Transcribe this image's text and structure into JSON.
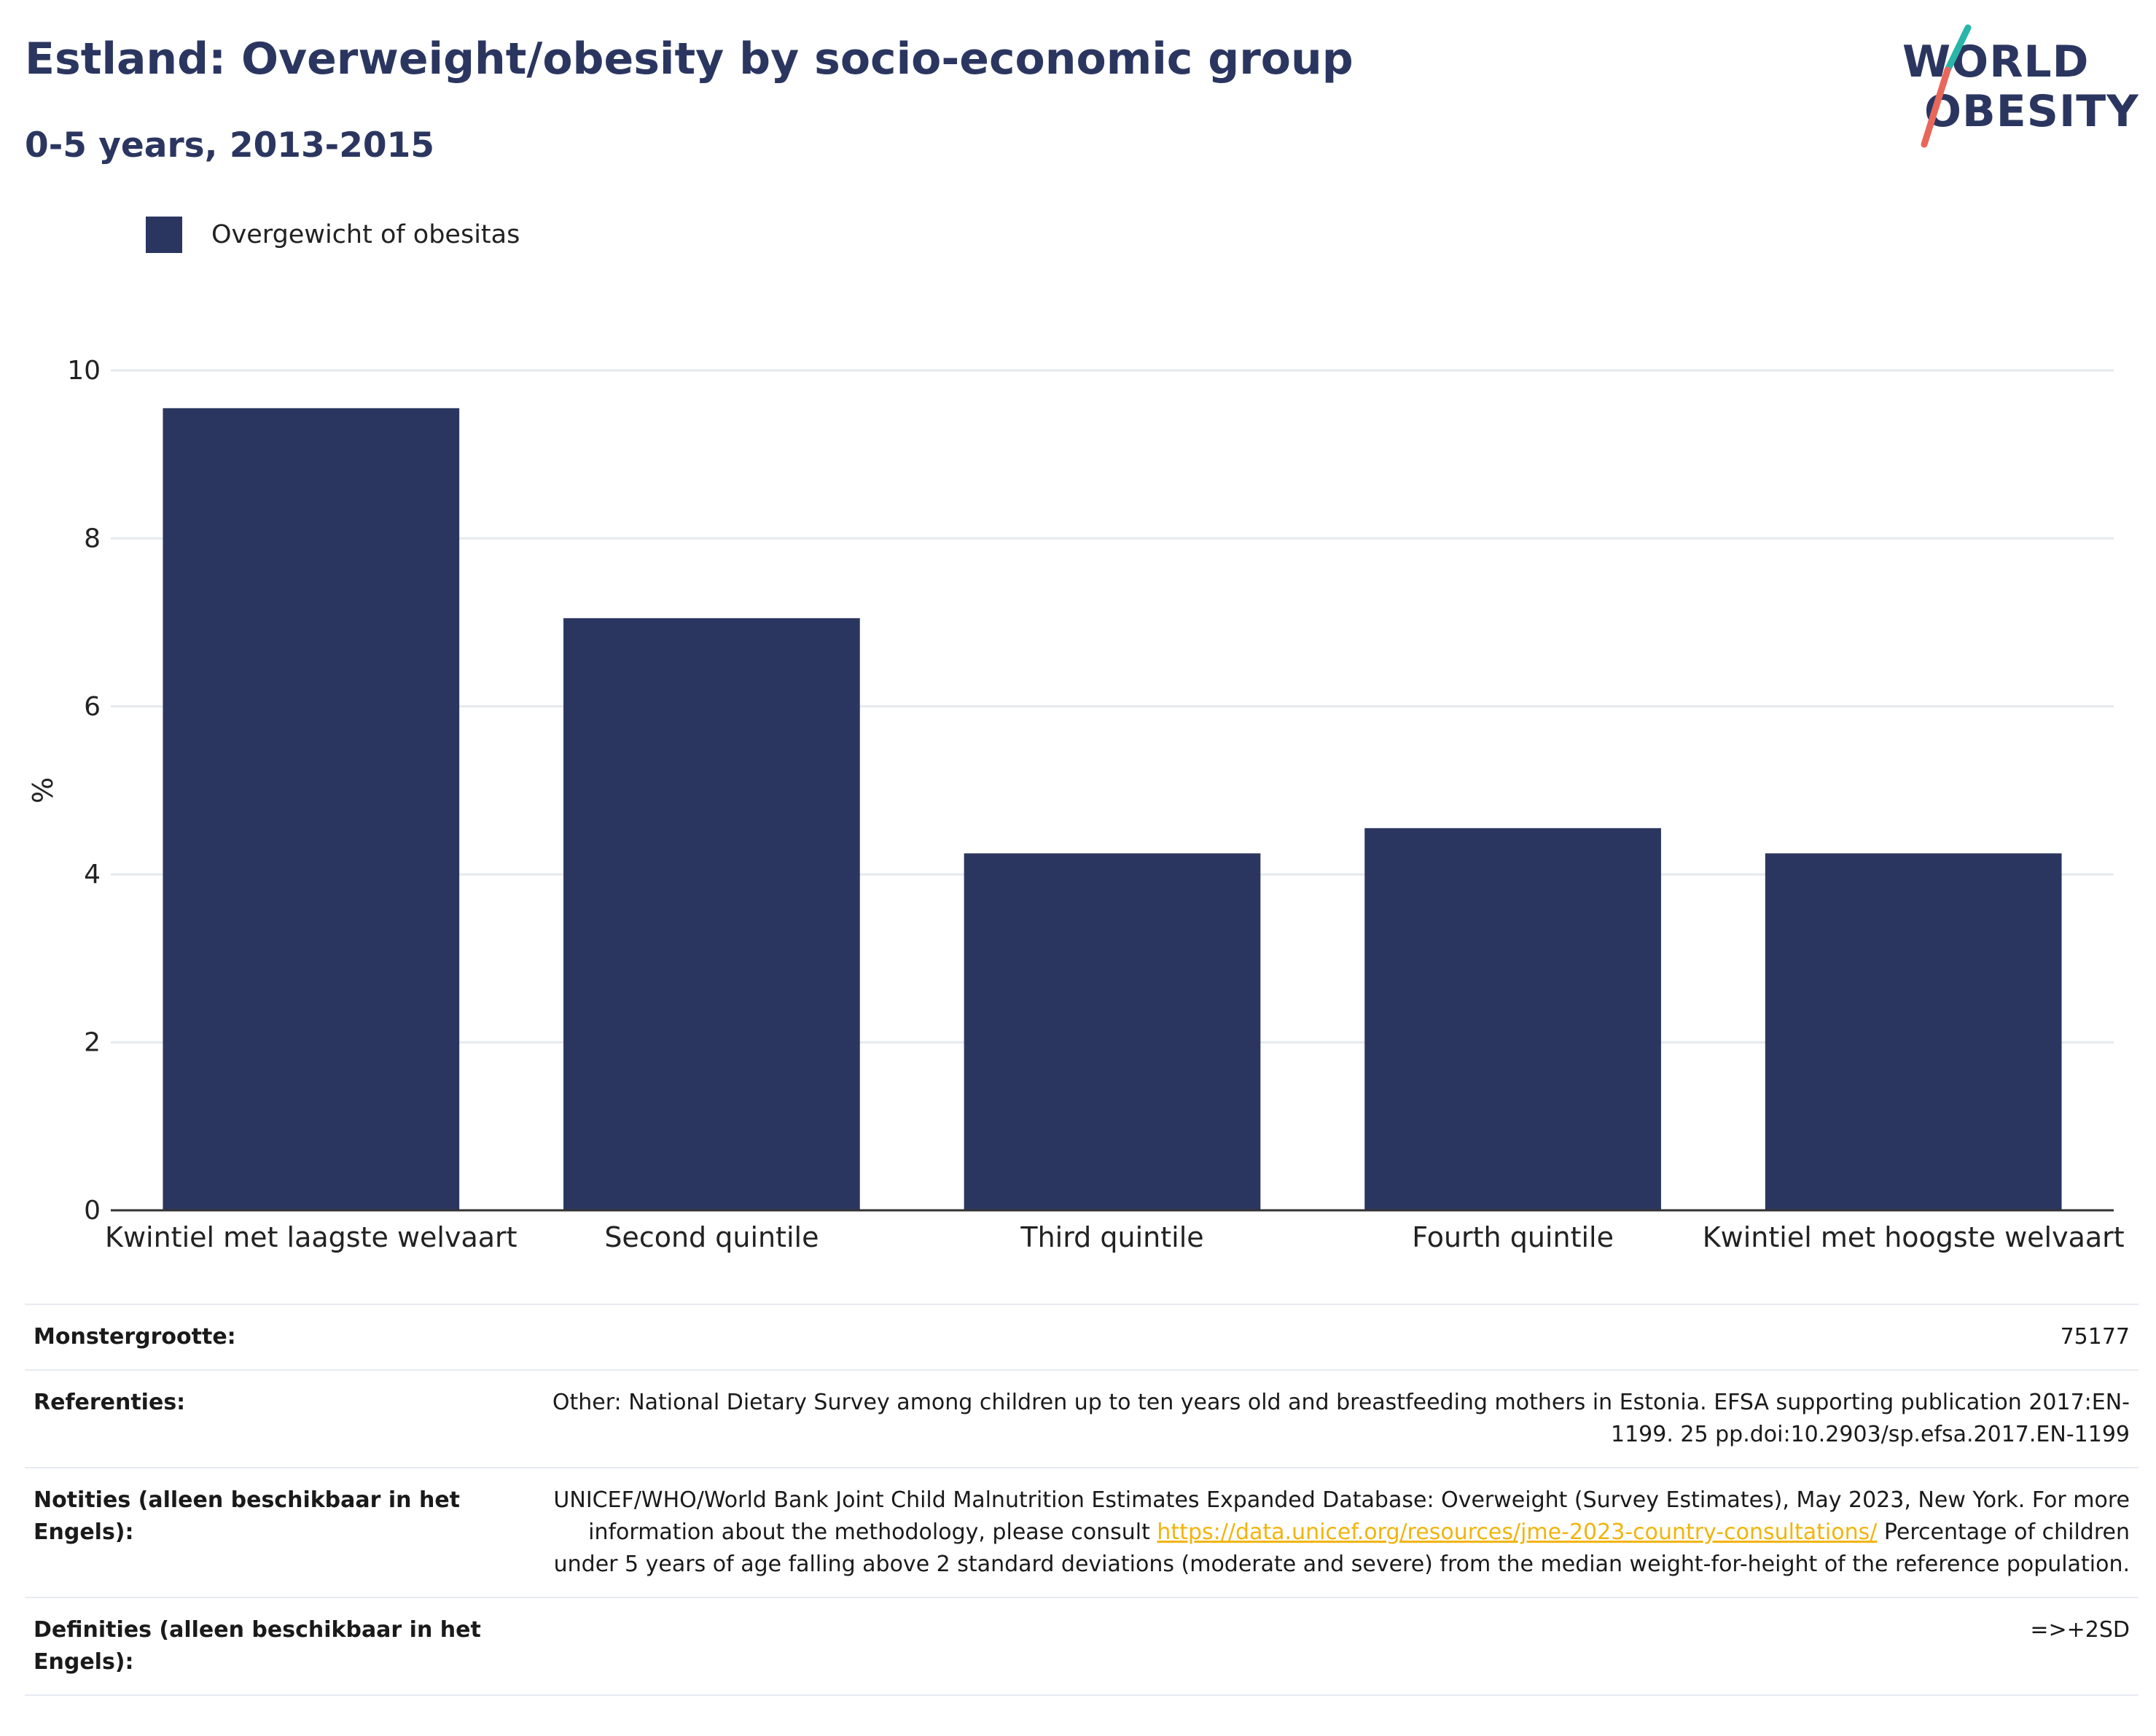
{
  "header": {
    "title": "Estland: Overweight/obesity by socio-economic group",
    "subtitle": "0-5 years, 2013-2015",
    "logo_line1": "WORLD",
    "logo_line2": "OBESITY"
  },
  "legend": {
    "label": "Overgewicht of obesitas"
  },
  "chart_data": {
    "type": "bar",
    "categories": [
      "Kwintiel met laagste welvaart",
      "Second quintile",
      "Third quintile",
      "Fourth quintile",
      "Kwintiel met hoogste welvaart"
    ],
    "series": [
      {
        "name": "Overgewicht of obesitas",
        "values": [
          9.55,
          7.05,
          4.25,
          4.55,
          4.25
        ]
      }
    ],
    "ylabel": "%",
    "ylim": [
      0,
      10
    ],
    "yticks": [
      0,
      2,
      4,
      6,
      8,
      10
    ],
    "grid": true,
    "legend_position": "top-left",
    "colors": {
      "bar": "#2b3660",
      "grid": "#e6e9f0",
      "axis": "#333333"
    }
  },
  "info": {
    "sample_label": "Monstergrootte:",
    "sample_value": "75177",
    "references_label": "Referenties:",
    "references_value": "Other: National Dietary Survey among children up to ten years old and breastfeeding mothers in Estonia. EFSA supporting publication 2017:EN-1199. 25 pp.doi:10.2903/sp.efsa.2017.EN-1199",
    "notes_label": "Notities (alleen beschikbaar in het Engels):",
    "notes_text_1": "UNICEF/WHO/World Bank Joint Child Malnutrition Estimates Expanded Database: Overweight (Survey Estimates), May 2023, New York. For more information about the methodology, please consult ",
    "notes_link": "https://data.unicef.org/resources/jme-2023-country-consultations/",
    "notes_text_2": "Percentage of children under 5 years of age falling above 2 standard deviations (moderate and severe) from the median weight-for-height of the reference population.",
    "definitions_label": "Definities (alleen beschikbaar in het Engels):",
    "definitions_value": "=>+2SD"
  }
}
